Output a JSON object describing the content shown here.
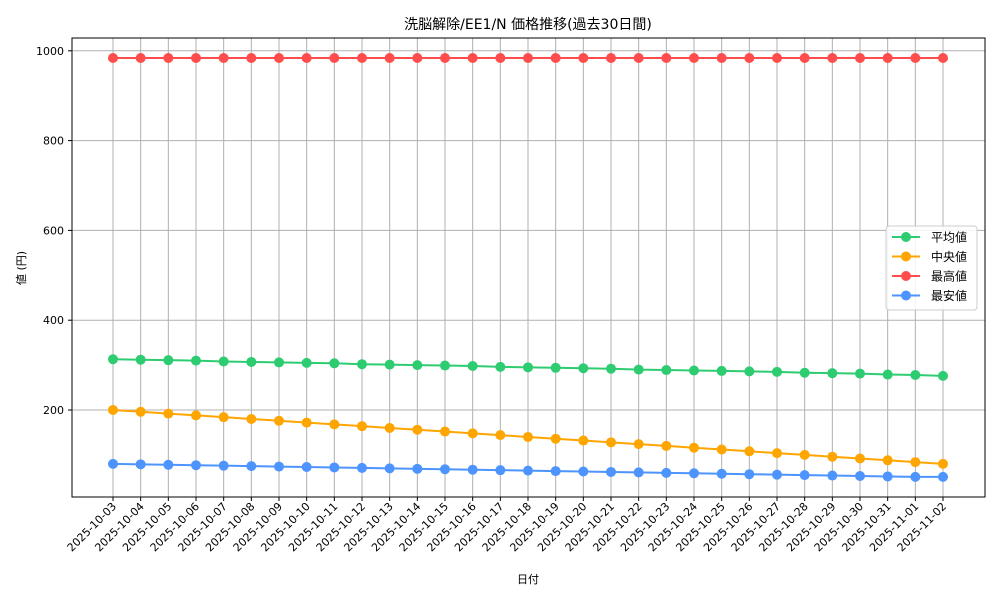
{
  "chart_data": {
    "type": "line",
    "title": "洗脳解除/EE1/N 価格推移(過去30日間)",
    "xlabel": "日付",
    "ylabel": "値 (円)",
    "ylim": [
      22,
      1035
    ],
    "yticks": [
      200,
      400,
      600,
      800,
      1000
    ],
    "grid": true,
    "legend_position": "center right",
    "x": [
      "2025-10-03",
      "2025-10-04",
      "2025-10-05",
      "2025-10-06",
      "2025-10-07",
      "2025-10-08",
      "2025-10-09",
      "2025-10-10",
      "2025-10-11",
      "2025-10-12",
      "2025-10-13",
      "2025-10-14",
      "2025-10-15",
      "2025-10-16",
      "2025-10-17",
      "2025-10-18",
      "2025-10-19",
      "2025-10-20",
      "2025-10-21",
      "2025-10-22",
      "2025-10-23",
      "2025-10-24",
      "2025-10-25",
      "2025-10-26",
      "2025-10-27",
      "2025-10-28",
      "2025-10-29",
      "2025-10-30",
      "2025-10-31",
      "2025-11-01",
      "2025-11-02"
    ],
    "series": [
      {
        "name": "平均値",
        "color": "#2ecc71",
        "values": [
          313,
          312,
          311,
          310,
          308,
          307,
          306,
          305,
          304,
          302,
          301,
          300,
          299,
          298,
          296,
          295,
          294,
          293,
          292,
          290,
          289,
          288,
          287,
          286,
          285,
          283,
          282,
          281,
          279,
          278,
          276
        ]
      },
      {
        "name": "中央値",
        "color": "#ffa500",
        "values": [
          200,
          196,
          192,
          188,
          184,
          180,
          176,
          172,
          168,
          164,
          160,
          156,
          152,
          148,
          144,
          140,
          136,
          132,
          128,
          124,
          120,
          116,
          112,
          108,
          104,
          100,
          96,
          92,
          88,
          84,
          80
        ]
      },
      {
        "name": "最高値",
        "color": "#ff4d4d",
        "values": [
          984,
          984,
          984,
          984,
          984,
          984,
          984,
          984,
          984,
          984,
          984,
          984,
          984,
          984,
          984,
          984,
          984,
          984,
          984,
          984,
          984,
          984,
          984,
          984,
          984,
          984,
          984,
          984,
          984,
          984,
          984
        ]
      },
      {
        "name": "最安値",
        "color": "#4d94ff",
        "values": [
          80,
          79,
          78,
          77,
          76,
          75,
          74,
          73,
          72,
          71,
          70,
          69,
          68,
          67,
          66,
          65,
          64,
          63,
          62,
          61,
          60,
          59,
          58,
          57,
          56,
          55,
          54,
          53,
          52,
          51,
          51
        ]
      }
    ]
  }
}
